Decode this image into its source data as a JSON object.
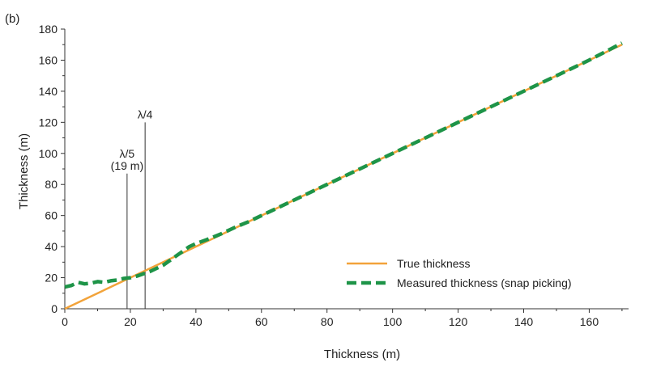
{
  "chart_data": {
    "type": "line",
    "panel_label": "(b)",
    "xlabel": "Thickness (m)",
    "ylabel": "Thickness (m)",
    "xlim": [
      0,
      172
    ],
    "ylim": [
      0,
      180
    ],
    "xticks": [
      0,
      20,
      40,
      60,
      80,
      100,
      120,
      140,
      160
    ],
    "yticks": [
      0,
      20,
      40,
      60,
      80,
      100,
      120,
      140,
      160,
      180
    ],
    "grid": false,
    "legend_position": "bottom-right",
    "series": [
      {
        "name": "True thickness",
        "color": "#F2A33A",
        "style": "solid",
        "x": [
          0,
          170
        ],
        "y": [
          0,
          170
        ]
      },
      {
        "name": "Measured thickness (snap picking)",
        "color": "#1E9448",
        "style": "dashed",
        "x": [
          0,
          2,
          4,
          6,
          8,
          10,
          12,
          14,
          16,
          18,
          20,
          22,
          24,
          26,
          28,
          30,
          32,
          34,
          36,
          38,
          40,
          44,
          48,
          52,
          56,
          60,
          70,
          80,
          90,
          100,
          110,
          120,
          130,
          140,
          150,
          160,
          170
        ],
        "y": [
          14,
          15,
          17,
          16,
          16.5,
          17.5,
          17,
          18,
          18.5,
          19.5,
          20,
          21,
          22.5,
          24,
          26,
          28,
          31,
          34,
          37,
          40,
          42,
          45,
          48.5,
          52.5,
          56,
          60,
          70,
          80,
          90,
          100,
          110,
          120,
          130,
          140,
          150,
          160,
          171
        ]
      }
    ],
    "annotations": [
      {
        "x": 19,
        "y_top": 87,
        "label_lines": [
          "λ/5",
          "(19 m)"
        ]
      },
      {
        "x": 24.5,
        "y_top": 120,
        "label_lines": [
          "λ/4"
        ]
      }
    ]
  }
}
